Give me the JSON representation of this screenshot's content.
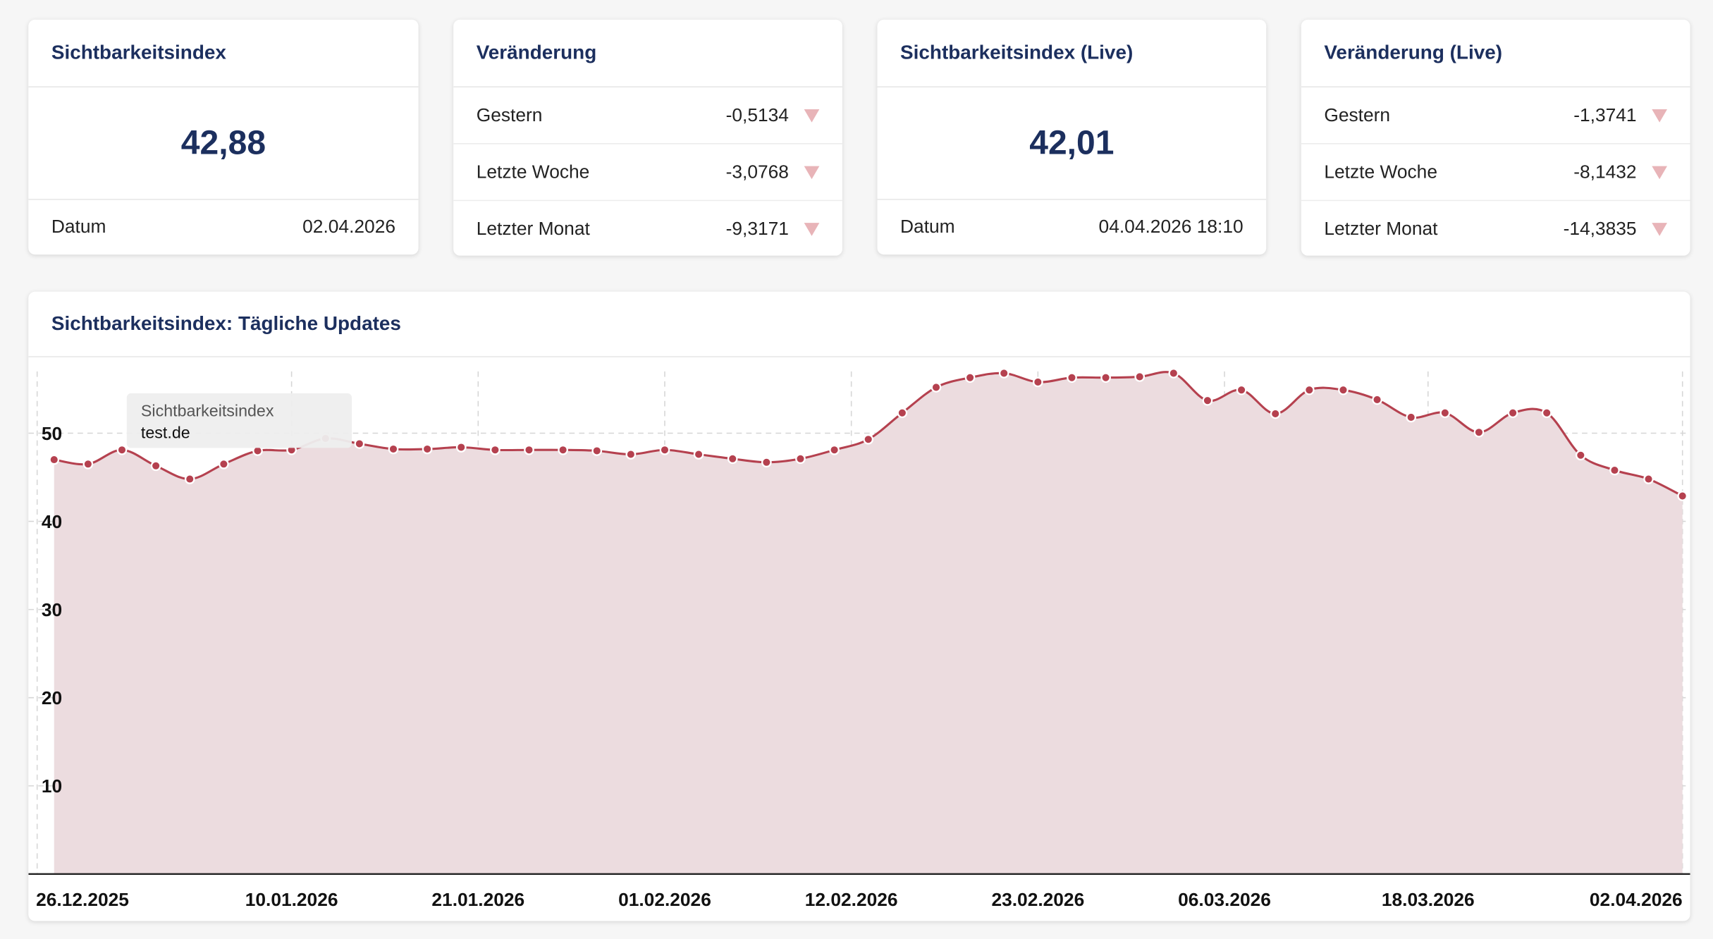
{
  "cards": [
    {
      "title": "Sichtbarkeitsindex",
      "value": "42,88",
      "footer": {
        "label": "Datum",
        "value": "02.04.2026"
      }
    },
    {
      "title": "Veränderung",
      "rows": [
        {
          "label": "Gestern",
          "value": "-0,5134"
        },
        {
          "label": "Letzte Woche",
          "value": "-3,0768"
        },
        {
          "label": "Letzter Monat",
          "value": "-9,3171"
        }
      ]
    },
    {
      "title": "Sichtbarkeitsindex (Live)",
      "value": "42,01",
      "footer": {
        "label": "Datum",
        "value": "04.04.2026 18:10"
      }
    },
    {
      "title": "Veränderung (Live)",
      "rows": [
        {
          "label": "Gestern",
          "value": "-1,3741"
        },
        {
          "label": "Letzte Woche",
          "value": "-8,1432"
        },
        {
          "label": "Letzter Monat",
          "value": "-14,3835"
        }
      ]
    }
  ],
  "chart_data": {
    "type": "area",
    "title": "Sichtbarkeitsindex: Tägliche Updates",
    "x": [
      "27.12.2025",
      "29.12.2025",
      "31.12.2025",
      "02.01.2026",
      "04.01.2026",
      "06.01.2026",
      "08.01.2026",
      "10.01.2026",
      "12.01.2026",
      "14.01.2026",
      "16.01.2026",
      "18.01.2026",
      "20.01.2026",
      "22.01.2026",
      "24.01.2026",
      "26.01.2026",
      "28.01.2026",
      "30.01.2026",
      "01.02.2026",
      "03.02.2026",
      "05.02.2026",
      "07.02.2026",
      "09.02.2026",
      "11.02.2026",
      "13.02.2026",
      "15.02.2026",
      "17.02.2026",
      "19.02.2026",
      "21.02.2026",
      "23.02.2026",
      "25.02.2026",
      "27.02.2026",
      "01.03.2026",
      "03.03.2026",
      "05.03.2026",
      "07.03.2026",
      "09.03.2026",
      "11.03.2026",
      "13.03.2026",
      "15.03.2026",
      "17.03.2026",
      "19.03.2026",
      "21.03.2026",
      "23.03.2026",
      "25.03.2026",
      "27.03.2026",
      "29.03.2026",
      "31.03.2026",
      "02.04.2026"
    ],
    "series": [
      {
        "name": "test.de",
        "color": "#b5414f",
        "values": [
          47.0,
          46.5,
          48.1,
          46.3,
          44.8,
          46.5,
          48.0,
          48.1,
          49.4,
          48.8,
          48.2,
          48.2,
          48.4,
          48.1,
          48.1,
          48.1,
          48.0,
          47.6,
          48.1,
          47.6,
          47.1,
          46.7,
          47.1,
          48.1,
          49.3,
          52.3,
          55.2,
          56.3,
          56.8,
          55.8,
          56.3,
          56.3,
          56.4,
          56.8,
          53.7,
          54.9,
          52.2,
          54.9,
          54.9,
          53.8,
          51.8,
          52.3,
          50.1,
          52.3,
          52.3,
          47.5,
          45.8,
          44.8,
          42.88
        ]
      }
    ],
    "tooltip_title": "Sichtbarkeitsindex",
    "xlim": [
      "26.12.2025",
      "02.04.2026"
    ],
    "xticks": [
      "26.12.2025",
      "10.01.2026",
      "21.01.2026",
      "01.02.2026",
      "12.02.2026",
      "23.02.2026",
      "06.03.2026",
      "18.03.2026",
      "02.04.2026"
    ],
    "ylim": [
      0,
      57
    ],
    "yticks": [
      10,
      20,
      30,
      40,
      50
    ],
    "grid": true
  }
}
